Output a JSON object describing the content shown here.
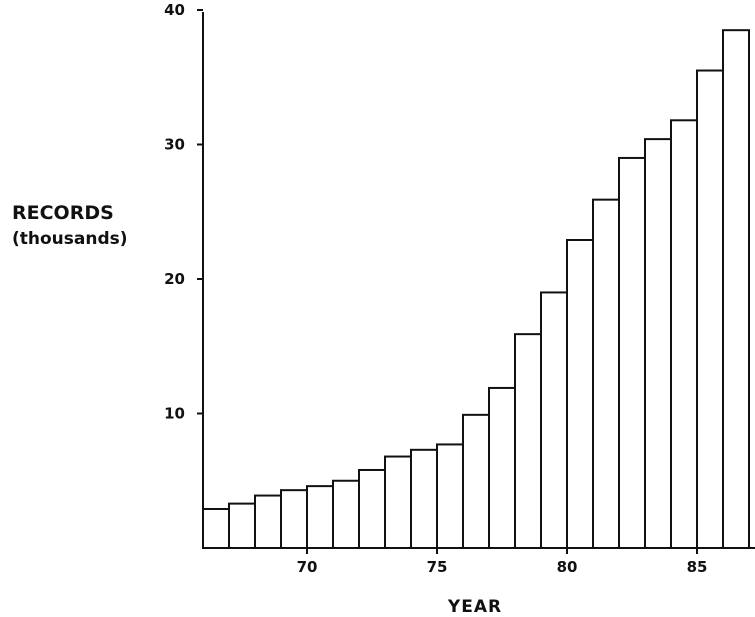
{
  "chart_data": {
    "type": "bar",
    "title": "",
    "xlabel": "YEAR",
    "ylabel": "RECORDS",
    "ylabel_sub": "(thousands)",
    "x": [
      66,
      67,
      68,
      69,
      70,
      71,
      72,
      73,
      74,
      75,
      76,
      77,
      78,
      79,
      80,
      81,
      82,
      83,
      84,
      85,
      86
    ],
    "values": [
      2.9,
      3.3,
      3.9,
      4.3,
      4.6,
      5.0,
      5.8,
      6.8,
      7.3,
      7.7,
      9.9,
      11.9,
      15.9,
      19.0,
      22.9,
      25.9,
      29.0,
      30.4,
      31.8,
      35.5,
      38.5
    ],
    "x_ticks": [
      70,
      75,
      80,
      85
    ],
    "y_ticks": [
      10,
      20,
      30,
      40
    ],
    "ylim": [
      0,
      40
    ],
    "grid": false,
    "bar_fill": "#ffffff",
    "bar_stroke": "#111111"
  }
}
